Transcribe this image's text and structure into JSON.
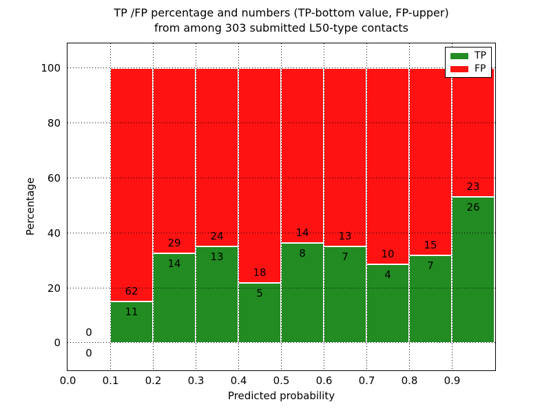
{
  "figure": {
    "background": "#ffffff"
  },
  "chart_data": {
    "type": "bar",
    "stacked": true,
    "orientation": "vertical",
    "title": "TP /FP percentage and numbers (TP-bottom value, FP-upper)\nfrom among 303 submitted L50-type contacts",
    "title_line1": "TP /FP percentage and numbers (TP-bottom value, FP-upper)",
    "title_line2": "from among 303 submitted L50-type contacts",
    "xlabel": "Predicted probability",
    "ylabel": "Percentage",
    "total_contacts": 303,
    "bin_edges": [
      0.0,
      0.1,
      0.2,
      0.3,
      0.4,
      0.5,
      0.6,
      0.7,
      0.8,
      0.9,
      1.0
    ],
    "series": [
      {
        "name": "TP",
        "color": "#228b22",
        "counts": [
          0,
          11,
          14,
          13,
          5,
          8,
          7,
          4,
          7,
          26
        ]
      },
      {
        "name": "FP",
        "color": "#ff1212",
        "counts": [
          0,
          62,
          29,
          24,
          18,
          14,
          13,
          10,
          15,
          23
        ]
      }
    ],
    "tp_percent_of_bin": [
      0,
      15.1,
      32.6,
      35.1,
      21.7,
      36.4,
      35.0,
      28.6,
      31.8,
      53.1
    ],
    "bars_stack_to_percent": 100,
    "xticks": [
      0.0,
      0.1,
      0.2,
      0.3,
      0.4,
      0.5,
      0.6,
      0.7,
      0.8,
      0.9
    ],
    "xtick_labels": [
      "0.0",
      "0.1",
      "0.2",
      "0.3",
      "0.4",
      "0.5",
      "0.6",
      "0.7",
      "0.8",
      "0.9"
    ],
    "yticks": [
      0,
      20,
      40,
      60,
      80,
      100
    ],
    "ytick_labels": [
      "0",
      "20",
      "40",
      "60",
      "80",
      "100"
    ],
    "xlim": [
      0.0,
      1.0
    ],
    "ylim": [
      -9.8,
      109.0
    ],
    "grid": "dotted",
    "grid_color": "#000000",
    "bar_edge_color": "#ffffff",
    "annotation_note": "upper number = FP count, lower number = TP count",
    "legend": {
      "position": "upper-right",
      "entries": [
        {
          "label": "TP",
          "color": "#228b22"
        },
        {
          "label": "FP",
          "color": "#ff1212"
        }
      ]
    }
  }
}
